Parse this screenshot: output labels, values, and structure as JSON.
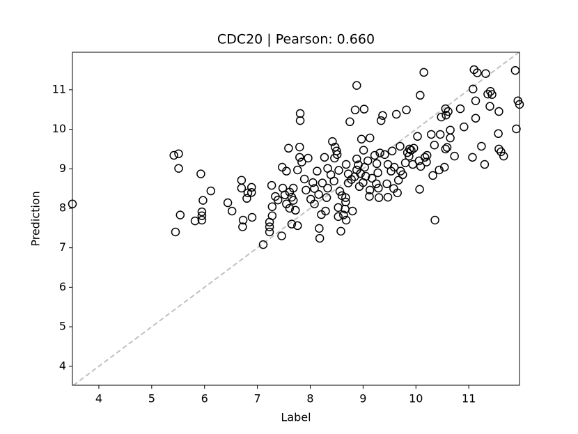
{
  "chart_data": {
    "type": "scatter",
    "title": "CDC20  |  Pearson: 0.660",
    "x_label": "Label",
    "y_label": "Prediction",
    "xlim": [
      3.5,
      11.96
    ],
    "ylim": [
      3.52,
      11.95
    ],
    "xticks": [
      4,
      5,
      6,
      7,
      8,
      9,
      10,
      11
    ],
    "yticks": [
      4,
      5,
      6,
      7,
      8,
      9,
      10,
      11
    ],
    "marker_color": "#000000",
    "identity_line": true,
    "identity_line_color": "#c0c0c0",
    "x": [
      3.5,
      5.42,
      5.51,
      5.51,
      5.45,
      5.54,
      5.93,
      5.97,
      5.95,
      5.95,
      5.95,
      5.82,
      6.12,
      6.44,
      6.52,
      6.7,
      6.7,
      6.73,
      6.72,
      6.8,
      6.82,
      6.89,
      6.89,
      6.9,
      7.11,
      7.23,
      7.23,
      7.23,
      7.27,
      7.28,
      7.28,
      7.34,
      7.39,
      7.46,
      7.47,
      7.48,
      7.52,
      7.55,
      7.55,
      7.59,
      7.61,
      7.61,
      7.65,
      7.65,
      7.68,
      7.68,
      7.72,
      7.76,
      7.76,
      7.81,
      7.81,
      7.8,
      7.8,
      7.84,
      7.89,
      7.92,
      7.96,
      8.01,
      8.05,
      8.08,
      8.08,
      8.13,
      8.16,
      8.17,
      8.18,
      8.21,
      8.23,
      8.27,
      8.29,
      8.31,
      8.33,
      8.33,
      8.39,
      8.42,
      8.45,
      8.46,
      8.47,
      8.5,
      8.51,
      8.53,
      8.53,
      8.54,
      8.56,
      8.58,
      8.6,
      8.63,
      8.66,
      8.67,
      8.67,
      8.68,
      8.68,
      8.72,
      8.72,
      8.75,
      8.78,
      8.8,
      8.84,
      8.85,
      8.88,
      8.88,
      8.88,
      8.91,
      8.93,
      8.95,
      8.97,
      9.0,
      9.01,
      9.02,
      9.03,
      9.05,
      9.09,
      9.12,
      9.13,
      9.13,
      9.17,
      9.22,
      9.25,
      9.26,
      9.28,
      9.29,
      9.3,
      9.32,
      9.34,
      9.37,
      9.41,
      9.45,
      9.47,
      9.47,
      9.53,
      9.55,
      9.58,
      9.59,
      9.63,
      9.65,
      9.67,
      9.7,
      9.71,
      9.75,
      9.8,
      9.82,
      9.84,
      9.87,
      9.88,
      9.91,
      9.94,
      9.96,
      10.03,
      10.06,
      10.07,
      10.08,
      10.09,
      10.15,
      10.17,
      10.2,
      10.21,
      10.29,
      10.32,
      10.35,
      10.36,
      10.44,
      10.46,
      10.48,
      10.54,
      10.56,
      10.56,
      10.57,
      10.59,
      10.61,
      10.65,
      10.65,
      10.73,
      10.84,
      10.91,
      11.07,
      11.08,
      11.1,
      11.13,
      11.16,
      11.13,
      11.24,
      11.3,
      11.32,
      11.36,
      11.4,
      11.41,
      11.44,
      11.56,
      11.57,
      11.57,
      11.61,
      11.66,
      11.88,
      11.9,
      11.93,
      11.96
    ],
    "y": [
      8.11,
      9.34,
      9.38,
      9.01,
      7.4,
      7.83,
      8.87,
      8.2,
      7.91,
      7.81,
      7.7,
      7.68,
      8.44,
      8.14,
      7.93,
      8.71,
      8.51,
      7.7,
      7.53,
      8.25,
      8.39,
      8.53,
      8.4,
      7.77,
      7.08,
      7.65,
      7.53,
      7.4,
      8.58,
      8.04,
      7.81,
      8.3,
      8.21,
      7.3,
      9.04,
      8.51,
      8.34,
      8.94,
      8.11,
      9.52,
      8.41,
      8.0,
      8.28,
      7.6,
      8.51,
      8.2,
      7.95,
      7.56,
      8.97,
      10.4,
      10.22,
      9.55,
      9.29,
      9.17,
      8.74,
      8.46,
      9.27,
      8.23,
      8.65,
      8.11,
      8.5,
      8.94,
      8.35,
      7.49,
      7.24,
      7.84,
      8.64,
      9.29,
      7.93,
      8.27,
      9.01,
      8.51,
      8.85,
      9.69,
      8.69,
      9.27,
      9.55,
      9.45,
      9.36,
      8.02,
      7.79,
      8.96,
      8.43,
      7.42,
      8.32,
      7.83,
      7.98,
      8.27,
      8.16,
      7.7,
      9.11,
      8.64,
      8.87,
      10.19,
      8.73,
      7.93,
      8.8,
      10.49,
      11.11,
      8.97,
      9.25,
      9.1,
      8.55,
      8.88,
      9.75,
      8.65,
      9.47,
      10.51,
      9.04,
      8.81,
      9.2,
      8.3,
      8.46,
      9.78,
      8.76,
      9.34,
      8.62,
      9.13,
      8.9,
      8.51,
      8.27,
      9.4,
      10.22,
      10.35,
      9.36,
      8.62,
      9.11,
      8.28,
      8.94,
      9.45,
      8.5,
      9.04,
      10.38,
      8.39,
      8.71,
      9.57,
      8.94,
      8.85,
      9.15,
      10.49,
      9.41,
      9.32,
      9.5,
      9.47,
      9.11,
      9.52,
      9.82,
      9.2,
      8.48,
      10.86,
      9.06,
      11.44,
      9.29,
      9.17,
      9.34,
      9.87,
      8.83,
      9.6,
      7.7,
      8.97,
      9.87,
      10.31,
      9.04,
      10.52,
      9.5,
      10.36,
      9.54,
      10.45,
      9.78,
      9.98,
      9.32,
      10.52,
      10.06,
      9.29,
      11.02,
      11.51,
      10.72,
      11.43,
      10.28,
      9.57,
      9.11,
      11.41,
      10.89,
      10.58,
      10.96,
      10.88,
      9.89,
      10.45,
      9.5,
      9.43,
      9.32,
      11.49,
      10.01,
      10.72,
      10.63
    ]
  }
}
